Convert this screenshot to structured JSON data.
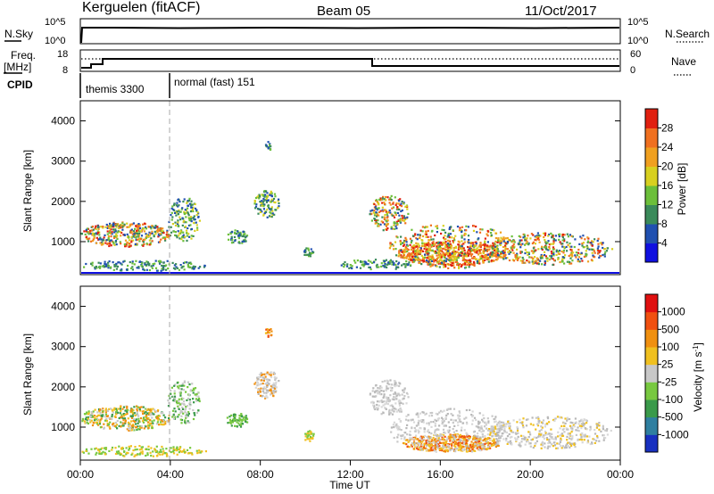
{
  "header": {
    "station": "Kerguelen (fitACF)",
    "beam": "Beam 05",
    "date": "11/Oct/2017"
  },
  "params": {
    "nsky_label": "N.Sky",
    "nsearch_label": "N.Search",
    "nsky_ticks": [
      "10^5",
      "10^0"
    ],
    "nsearch_ticks": [
      "10^5",
      "10^0"
    ],
    "freq_label_1": "Freq.",
    "freq_label_2": "[MHz]",
    "freq_ticks": [
      "18",
      "8"
    ],
    "nave_label": "Nave",
    "nave_ticks": [
      "60",
      "0"
    ],
    "cpid_label": "CPID",
    "cpid_segments": [
      {
        "label": "themis 3300",
        "start_hour": 0.0,
        "end_hour": 4.0
      },
      {
        "label": "normal (fast) 151",
        "start_hour": 4.0,
        "end_hour": 24.0
      }
    ]
  },
  "x_axis": {
    "label": "Time UT",
    "ticks": [
      "00:00",
      "04:00",
      "08:00",
      "12:00",
      "16:00",
      "20:00",
      "00:00"
    ],
    "tick_hours": [
      0,
      4,
      8,
      12,
      16,
      20,
      24
    ]
  },
  "chart_data": [
    {
      "type": "heatmap",
      "title": "Power",
      "ylabel": "Slant Range [km]",
      "colorbar_label": "Power [dB]",
      "ylim": [
        180,
        4500
      ],
      "yticks": [
        "1000",
        "2000",
        "3000",
        "4000"
      ],
      "ytick_values": [
        1000,
        2000,
        3000,
        4000
      ],
      "colorbar_ticks": [
        "4",
        "8",
        "12",
        "16",
        "20",
        "24",
        "28"
      ],
      "colorbar_colors": [
        "#1010e0",
        "#2050b0",
        "#3a8a5a",
        "#6cbf3a",
        "#d8d020",
        "#f0a020",
        "#f07020",
        "#e02010"
      ]
    },
    {
      "type": "heatmap",
      "title": "Velocity",
      "ylabel": "Slant Range [km]",
      "colorbar_label": "Velocity [m s^-1]",
      "ylim": [
        180,
        4500
      ],
      "yticks": [
        "1000",
        "2000",
        "3000",
        "4000"
      ],
      "ytick_values": [
        1000,
        2000,
        3000,
        4000
      ],
      "colorbar_ticks": [
        "1000",
        "500",
        "100",
        "25",
        "-25",
        "-100",
        "-500",
        "-1000"
      ],
      "colorbar_colors": [
        "#1830c0",
        "#2f7fa0",
        "#3a9a4a",
        "#78c840",
        "#c8c8c8",
        "#f0c020",
        "#f09010",
        "#f05010",
        "#e01010"
      ]
    }
  ]
}
